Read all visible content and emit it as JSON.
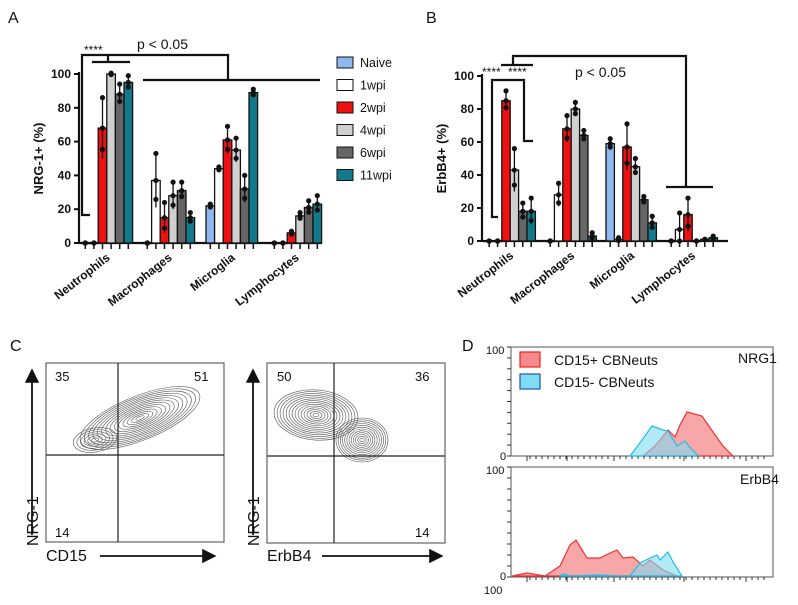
{
  "panel_labels": {
    "a": "A",
    "b": "B",
    "c": "C",
    "d": "D"
  },
  "legend": {
    "groups": [
      "Naive",
      "1wpi",
      "2wpi",
      "4wpi",
      "6wpi",
      "11wpi"
    ],
    "colors": [
      "#8fb7f0",
      "#ffffff",
      "#ee1111",
      "#d0d0d0",
      "#666666",
      "#137a8c"
    ]
  },
  "chart_data": [
    {
      "type": "bar",
      "title": "",
      "ylabel": "NRG-1+ (%)",
      "xlabel": "",
      "ylim": [
        0,
        100
      ],
      "yticks": [
        "0",
        "20",
        "40",
        "60",
        "80",
        "100"
      ],
      "categories": [
        "Neutrophils",
        "Macrophages",
        "Microglia",
        "Lymphocytes"
      ],
      "series": [
        {
          "name": "Naive",
          "values": [
            0,
            0,
            22,
            0
          ],
          "error": [
            0,
            0,
            1,
            0
          ]
        },
        {
          "name": "1wpi",
          "values": [
            0,
            37,
            44,
            0
          ],
          "error": [
            0,
            16,
            1,
            0
          ]
        },
        {
          "name": "2wpi",
          "values": [
            68,
            15,
            61,
            6
          ],
          "error": [
            18,
            9,
            8,
            1
          ]
        },
        {
          "name": "4wpi",
          "values": [
            100,
            28,
            55,
            16
          ],
          "error": [
            0.5,
            8,
            7,
            2
          ]
        },
        {
          "name": "6wpi",
          "values": [
            88,
            31,
            32,
            21
          ],
          "error": [
            6,
            5,
            8,
            4
          ]
        },
        {
          "name": "11wpi",
          "values": [
            95,
            15,
            89,
            23
          ],
          "error": [
            4,
            3,
            2,
            5
          ]
        }
      ],
      "annotations": [
        "****",
        "p < 0.05"
      ]
    },
    {
      "type": "bar",
      "title": "",
      "ylabel": "ErbB4+ (%)",
      "xlabel": "",
      "ylim": [
        0,
        100
      ],
      "yticks": [
        "0",
        "20",
        "40",
        "60",
        "80",
        "100"
      ],
      "categories": [
        "Neutrophils",
        "Macrophages",
        "Microglia",
        "Lymphocytes"
      ],
      "series": [
        {
          "name": "Naive",
          "values": [
            0,
            0,
            59,
            0
          ],
          "error": [
            0,
            0,
            3,
            0
          ]
        },
        {
          "name": "1wpi",
          "values": [
            0,
            28,
            1,
            7
          ],
          "error": [
            0,
            7,
            1,
            10
          ]
        },
        {
          "name": "2wpi",
          "values": [
            85,
            68,
            57,
            16
          ],
          "error": [
            6,
            8,
            14,
            10
          ]
        },
        {
          "name": "4wpi",
          "values": [
            43,
            80,
            45,
            0
          ],
          "error": [
            13,
            4,
            5,
            0
          ]
        },
        {
          "name": "6wpi",
          "values": [
            18,
            64,
            25,
            1
          ],
          "error": [
            5,
            3,
            2,
            0
          ]
        },
        {
          "name": "11wpi",
          "values": [
            18,
            3,
            11,
            2
          ],
          "error": [
            8,
            2,
            4,
            1
          ]
        }
      ],
      "annotations": [
        "****",
        "****",
        "p < 0.05"
      ]
    },
    {
      "type": "scatter",
      "subtype": "flow-contour",
      "plots": [
        {
          "xlabel": "CD15",
          "ylabel": "NRG-1",
          "quadrants": {
            "upper_left": "35",
            "upper_right": "51",
            "lower_left": "14"
          }
        },
        {
          "xlabel": "ErbB4",
          "ylabel": "NRG-1",
          "quadrants": {
            "upper_left": "50",
            "upper_right": "36",
            "lower_right": "14"
          }
        }
      ]
    },
    {
      "type": "area",
      "subtype": "histogram-overlay",
      "legend": [
        "CD15+ CBNeuts",
        "CD15- CBNeuts"
      ],
      "colors": [
        "#f48a8a",
        "#7fdcf4"
      ],
      "panels": [
        {
          "title": "NRG1",
          "yticks": [
            "100",
            "0"
          ]
        },
        {
          "title": "ErbB4",
          "yticks": [
            "100",
            "0"
          ]
        }
      ],
      "x_tick_label": "100"
    }
  ]
}
